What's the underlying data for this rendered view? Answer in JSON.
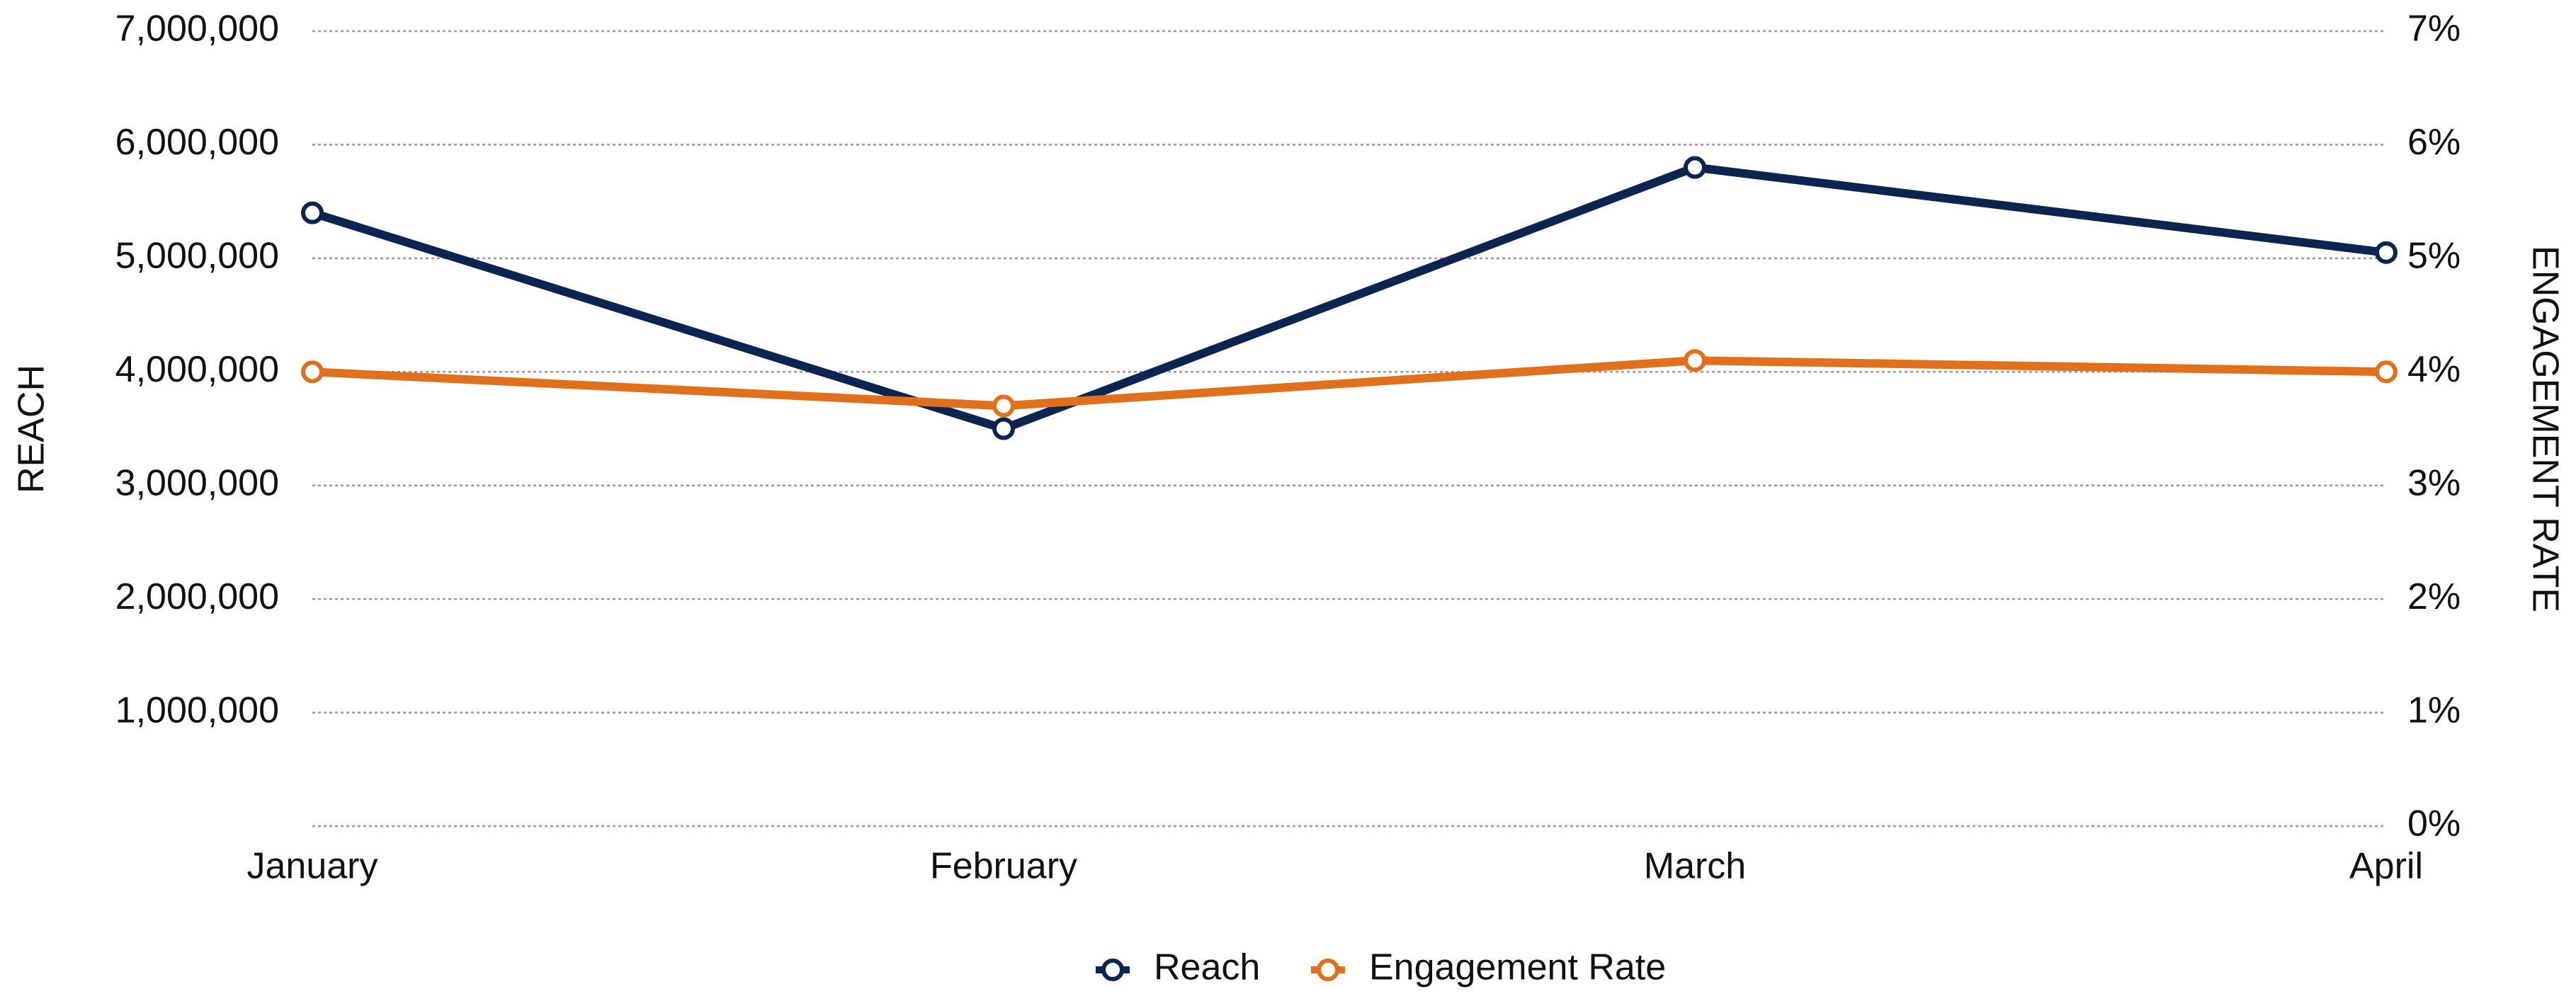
{
  "chart_data": {
    "type": "line",
    "categories": [
      "January",
      "February",
      "March",
      "April"
    ],
    "y_label": "REACH",
    "y2_label": "ENGAGEMENT RATE",
    "series": [
      {
        "name": "Reach",
        "color": "#0c2550",
        "axis": "y",
        "values": [
          5400000,
          3500000,
          5800000,
          5050000
        ]
      },
      {
        "name": "Engagement Rate",
        "color": "#e0701c",
        "axis": "y2",
        "values": [
          4.0,
          3.7,
          4.1,
          4.0
        ]
      }
    ],
    "ylim": [
      0,
      7000000
    ],
    "yticks": [
      {
        "value": 1000000,
        "label": "1,000,000"
      },
      {
        "value": 2000000,
        "label": "2,000,000"
      },
      {
        "value": 3000000,
        "label": "3,000,000"
      },
      {
        "value": 4000000,
        "label": "4,000,000"
      },
      {
        "value": 5000000,
        "label": "5,000,000"
      },
      {
        "value": 6000000,
        "label": "6,000,000"
      },
      {
        "value": 7000000,
        "label": "7,000,000"
      }
    ],
    "y2lim": [
      0,
      7
    ],
    "y2ticks": [
      {
        "value": 0,
        "label": "0%"
      },
      {
        "value": 1,
        "label": "1%"
      },
      {
        "value": 2,
        "label": "2%"
      },
      {
        "value": 3,
        "label": "3%"
      },
      {
        "value": 4,
        "label": "4%"
      },
      {
        "value": 5,
        "label": "5%"
      },
      {
        "value": 6,
        "label": "6%"
      },
      {
        "value": 7,
        "label": "7%"
      }
    ],
    "grid": true,
    "legend": "bottom"
  }
}
